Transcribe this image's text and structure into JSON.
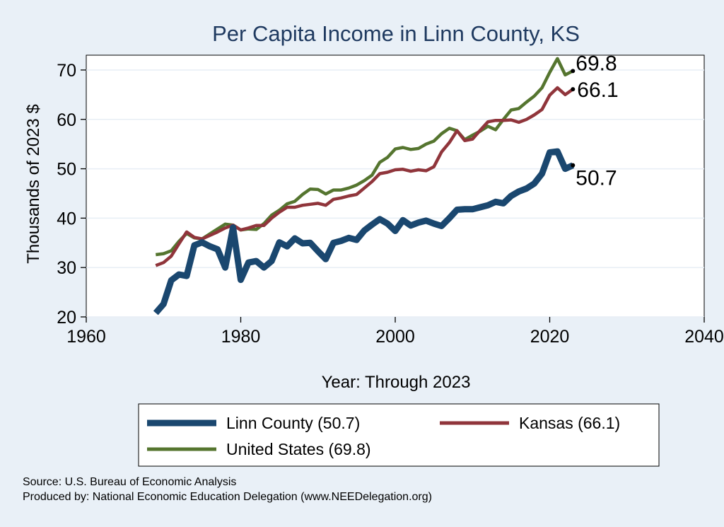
{
  "chart_data": {
    "type": "line",
    "title": "Per Capita Income in Linn County, KS",
    "xlabel": "Year: Through 2023",
    "ylabel": "Thousands of 2023 $",
    "xlim": [
      1960,
      2040
    ],
    "ylim": [
      20,
      73
    ],
    "x_ticks": [
      1960,
      1980,
      2000,
      2020,
      2040
    ],
    "y_ticks": [
      20,
      30,
      40,
      50,
      60,
      70
    ],
    "grid": "horizontal",
    "legend_position": "bottom",
    "x": [
      1969,
      1970,
      1971,
      1972,
      1973,
      1974,
      1975,
      1976,
      1977,
      1978,
      1979,
      1980,
      1981,
      1982,
      1983,
      1984,
      1985,
      1986,
      1987,
      1988,
      1989,
      1990,
      1991,
      1992,
      1993,
      1994,
      1995,
      1996,
      1997,
      1998,
      1999,
      2000,
      2001,
      2002,
      2003,
      2004,
      2005,
      2006,
      2007,
      2008,
      2009,
      2010,
      2011,
      2012,
      2013,
      2014,
      2015,
      2016,
      2017,
      2018,
      2019,
      2020,
      2021,
      2022,
      2023
    ],
    "series": [
      {
        "name": "Linn County (50.7)",
        "color": "#1a476f",
        "end_label": "50.7",
        "values": [
          20.8,
          22.6,
          27.4,
          28.6,
          28.3,
          34.5,
          35.1,
          34.3,
          33.7,
          30.0,
          38.1,
          27.5,
          31.0,
          31.3,
          30.0,
          31.3,
          35.1,
          34.3,
          35.9,
          34.9,
          35.0,
          33.3,
          31.7,
          35.0,
          35.4,
          36.0,
          35.6,
          37.5,
          38.7,
          39.8,
          38.9,
          37.4,
          39.6,
          38.5,
          39.1,
          39.5,
          38.9,
          38.4,
          40.0,
          41.7,
          41.8,
          41.8,
          42.2,
          42.6,
          43.3,
          43.0,
          44.5,
          45.4,
          46.0,
          47.0,
          49.0,
          53.3,
          53.5,
          50.0,
          50.7
        ]
      },
      {
        "name": "Kansas (66.1)",
        "color": "#90353b",
        "end_label": "66.1",
        "values": [
          30.4,
          31.0,
          32.3,
          34.8,
          37.2,
          36.1,
          35.8,
          36.5,
          37.2,
          38.0,
          38.6,
          37.6,
          38.0,
          38.5,
          38.5,
          40.0,
          41.2,
          42.2,
          42.2,
          42.6,
          42.8,
          43.0,
          42.6,
          43.8,
          44.1,
          44.5,
          44.8,
          46.1,
          47.4,
          49.0,
          49.3,
          49.8,
          49.9,
          49.5,
          49.8,
          49.6,
          50.4,
          53.4,
          55.3,
          57.7,
          55.7,
          56.0,
          57.8,
          59.5,
          59.8,
          59.8,
          59.9,
          59.4,
          60.0,
          60.9,
          62.0,
          64.9,
          66.4,
          65.0,
          66.1
        ]
      },
      {
        "name": "United States (69.8)",
        "color": "#55752f",
        "end_label": "69.8",
        "values": [
          32.6,
          32.8,
          33.4,
          35.3,
          36.9,
          36.0,
          35.8,
          36.8,
          37.8,
          38.8,
          38.6,
          37.6,
          37.8,
          37.7,
          38.9,
          40.6,
          41.6,
          42.9,
          43.4,
          44.8,
          45.9,
          45.8,
          44.9,
          45.7,
          45.7,
          46.1,
          46.7,
          47.6,
          48.7,
          51.3,
          52.3,
          54.0,
          54.3,
          53.9,
          54.1,
          55.0,
          55.6,
          57.1,
          58.2,
          57.7,
          55.9,
          56.8,
          57.6,
          58.6,
          57.9,
          60.0,
          61.9,
          62.2,
          63.5,
          64.7,
          66.4,
          69.5,
          72.3,
          69.0,
          69.8
        ]
      }
    ]
  },
  "source": "Source: U.S. Bureau of Economic Analysis",
  "producer": "Produced by: National Economic Education Delegation (www.NEEDelegation.org)"
}
